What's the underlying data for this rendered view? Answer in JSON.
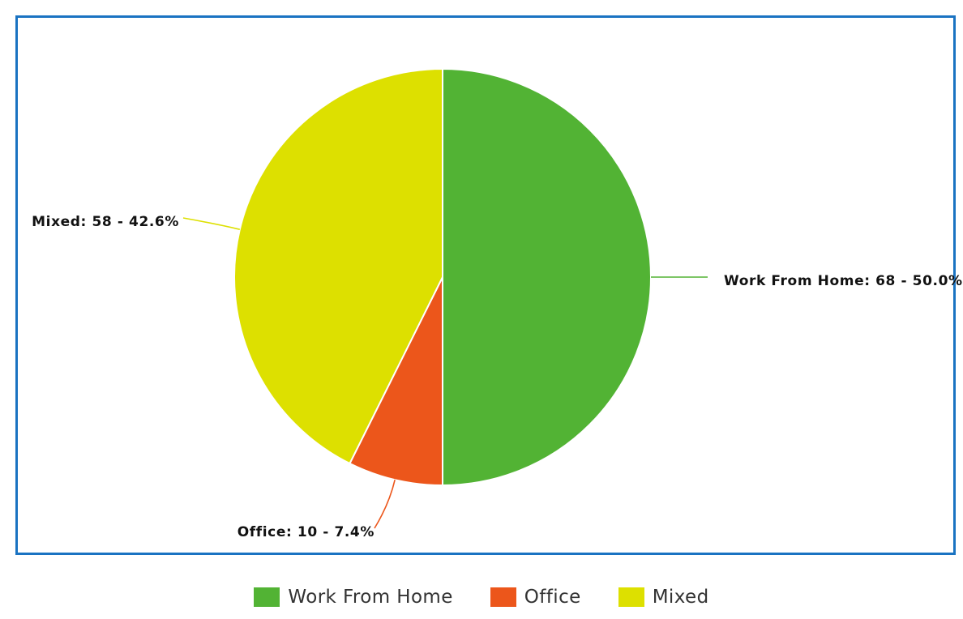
{
  "chart_data": {
    "type": "pie",
    "title": "",
    "slices": [
      {
        "name": "Work From Home",
        "value": 68,
        "percent": 50.0,
        "label": "Work From Home: 68 - 50.0%",
        "color": "#52b334"
      },
      {
        "name": "Office",
        "value": 10,
        "percent": 7.4,
        "label": "Office: 10 - 7.4%",
        "color": "#ec561b"
      },
      {
        "name": "Mixed",
        "value": 58,
        "percent": 42.6,
        "label": "Mixed: 58 - 42.6%",
        "color": "#dde000"
      }
    ],
    "legend": {
      "placement": "bottom",
      "items": [
        {
          "label": "Work From Home",
          "color": "#52b334"
        },
        {
          "label": "Office",
          "color": "#ec561b"
        },
        {
          "label": "Mixed",
          "color": "#dde000"
        }
      ]
    },
    "frame_color": "#1a73c2"
  }
}
